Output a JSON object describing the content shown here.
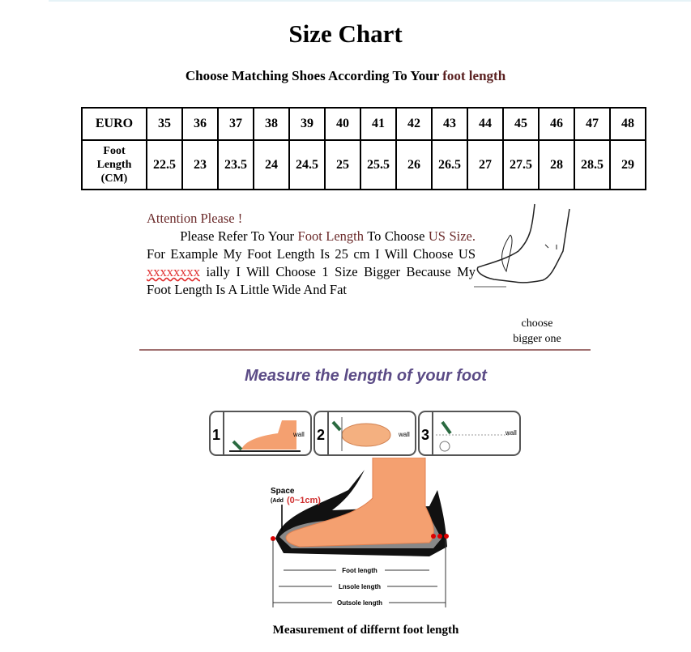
{
  "title": "Size Chart",
  "subtitle": {
    "prefix": "Choose Matching Shoes According To Your ",
    "highlight": "foot length"
  },
  "table": {
    "row1_header": "EURO",
    "row2_header": [
      "Foot",
      "Length",
      "(CM)"
    ],
    "euro": [
      "35",
      "36",
      "37",
      "38",
      "39",
      "40",
      "41",
      "42",
      "43",
      "44",
      "45",
      "46",
      "47",
      "48"
    ],
    "foot_length_cm": [
      "22.5",
      "23",
      "23.5",
      "24",
      "24.5",
      "25",
      "25.5",
      "26",
      "26.5",
      "27",
      "27.5",
      "28",
      "28.5",
      "29"
    ]
  },
  "attention": {
    "heading": "Attention Please !",
    "t1": "Please Refer To Your ",
    "t2": "Foot Length",
    "t3": " To Choose ",
    "t4": "US Size.",
    "t5": " For Example My Foot Length Is 25 cm I Will Choose US ",
    "t6": "xxxxxxxx",
    "t7": " ially I Will Choose 1 Size Bigger Because My Foot Length Is A Little Wide And Fat"
  },
  "choose_note": [
    "choose",
    "bigger one"
  ],
  "measure_heading": "Measure the length of your foot",
  "steps": [
    {
      "num": "1",
      "label": "wall"
    },
    {
      "num": "2",
      "label": "wall"
    },
    {
      "num": "3",
      "label": "wall"
    }
  ],
  "diagram": {
    "space": "Space",
    "add": "(Add",
    "range": "(0~1cm)",
    "foot_length": "Foot length",
    "insole_length": "Lnsole length",
    "outsole_length": "Outsole length"
  },
  "caption": "Measurement of differnt foot length"
}
